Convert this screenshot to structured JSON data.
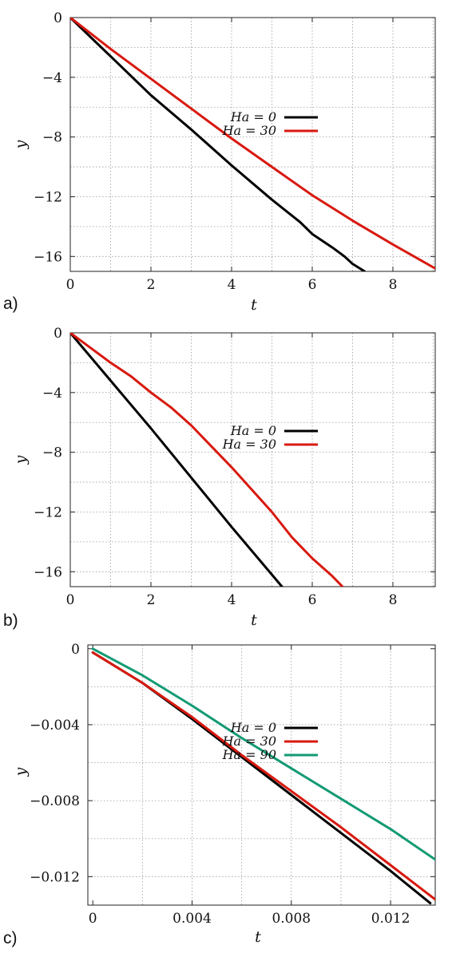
{
  "chart_data": [
    {
      "type": "line",
      "panel_label": "a)",
      "xlabel": "t",
      "ylabel": "y",
      "xlim": [
        0,
        9.05
      ],
      "ylim": [
        -17,
        0
      ],
      "xticks": [
        0,
        2,
        4,
        6,
        8
      ],
      "xtick_labels": [
        "0",
        "2",
        "4",
        "6",
        "8"
      ],
      "yticks": [
        0,
        -4,
        -8,
        -12,
        -16
      ],
      "ytick_labels": [
        "0",
        "−4",
        "−8",
        "−12",
        "−16"
      ],
      "xgrid": [
        1,
        2,
        3,
        4,
        5,
        6,
        7,
        8,
        9
      ],
      "ygrid": [
        -2,
        -4,
        -6,
        -8,
        -10,
        -12,
        -14,
        -16
      ],
      "grid": true,
      "legend_position": "middle-right",
      "series": [
        {
          "name": "Ha = 0",
          "color": "#000000",
          "x": [
            0,
            1,
            2,
            3,
            4,
            5,
            5.7,
            6,
            6.5,
            6.8,
            7,
            7.3
          ],
          "y": [
            0,
            -2.6,
            -5.2,
            -7.5,
            -9.9,
            -12.2,
            -13.7,
            -14.5,
            -15.4,
            -16.0,
            -16.5,
            -17.0
          ]
        },
        {
          "name": "Ha = 30",
          "color": "#d8190f",
          "x": [
            0,
            1,
            2,
            3,
            4,
            5,
            6,
            7,
            8,
            9.05
          ],
          "y": [
            0,
            -2.1,
            -4.1,
            -6.1,
            -8.1,
            -10.0,
            -11.9,
            -13.6,
            -15.2,
            -16.8
          ]
        }
      ]
    },
    {
      "type": "line",
      "panel_label": "b)",
      "xlabel": "t",
      "ylabel": "y",
      "xlim": [
        0,
        9.05
      ],
      "ylim": [
        -17,
        0
      ],
      "xticks": [
        0,
        2,
        4,
        6,
        8
      ],
      "xtick_labels": [
        "0",
        "2",
        "4",
        "6",
        "8"
      ],
      "yticks": [
        0,
        -4,
        -8,
        -12,
        -16
      ],
      "ytick_labels": [
        "0",
        "−4",
        "−8",
        "−12",
        "−16"
      ],
      "xgrid": [
        1,
        2,
        3,
        4,
        5,
        6,
        7,
        8,
        9
      ],
      "ygrid": [
        -2,
        -4,
        -6,
        -8,
        -10,
        -12,
        -14,
        -16
      ],
      "grid": true,
      "legend_position": "middle-right",
      "series": [
        {
          "name": "Ha = 0",
          "color": "#000000",
          "x": [
            0,
            1,
            2,
            3,
            4,
            5,
            5.25
          ],
          "y": [
            0,
            -3.2,
            -6.4,
            -9.7,
            -13.0,
            -16.2,
            -17.0
          ]
        },
        {
          "name": "Ha = 30",
          "color": "#d8190f",
          "x": [
            0,
            0.5,
            1,
            1.5,
            2,
            2.5,
            3,
            3.5,
            4,
            4.5,
            5,
            5.5,
            6,
            6.5,
            6.75
          ],
          "y": [
            0,
            -1.0,
            -2.0,
            -2.9,
            -4.0,
            -5.0,
            -6.2,
            -7.6,
            -9.0,
            -10.5,
            -12.0,
            -13.7,
            -15.1,
            -16.3,
            -17.0
          ]
        }
      ]
    },
    {
      "type": "line",
      "panel_label": "c)",
      "xlabel": "t",
      "ylabel": "y",
      "xlim": [
        -0.0002,
        0.0138
      ],
      "ylim": [
        -0.0135,
        0.0002
      ],
      "xticks": [
        0,
        0.004,
        0.008,
        0.012
      ],
      "xtick_labels": [
        "0",
        "0.004",
        "0.008",
        "0.012"
      ],
      "yticks": [
        0,
        -0.004,
        -0.008,
        -0.012
      ],
      "ytick_labels": [
        "0",
        "−0.004",
        "−0.008",
        "−0.012"
      ],
      "xgrid": [
        0.002,
        0.004,
        0.006,
        0.008,
        0.01,
        0.012
      ],
      "ygrid": [
        -0.002,
        -0.004,
        -0.006,
        -0.008,
        -0.01,
        -0.012
      ],
      "grid": true,
      "legend_position": "middle-right",
      "series": [
        {
          "name": "Ha = 0",
          "color": "#000000",
          "x": [
            0,
            0.002,
            0.004,
            0.006,
            0.008,
            0.01,
            0.012,
            0.0136
          ],
          "y": [
            -0.0002,
            -0.0018,
            -0.0037,
            -0.0057,
            -0.0077,
            -0.0097,
            -0.0117,
            -0.0134
          ]
        },
        {
          "name": "Ha = 30",
          "color": "#d8190f",
          "x": [
            0,
            0.002,
            0.004,
            0.006,
            0.008,
            0.01,
            0.012,
            0.0138
          ],
          "y": [
            -0.0002,
            -0.0018,
            -0.0036,
            -0.0056,
            -0.0075,
            -0.0094,
            -0.0114,
            -0.0132
          ]
        },
        {
          "name": "Ha = 90",
          "color": "#129a74",
          "x": [
            0,
            0.002,
            0.004,
            0.006,
            0.008,
            0.01,
            0.012,
            0.0138
          ],
          "y": [
            0,
            -0.0014,
            -0.003,
            -0.0047,
            -0.0063,
            -0.0079,
            -0.0095,
            -0.0111
          ]
        }
      ]
    }
  ]
}
